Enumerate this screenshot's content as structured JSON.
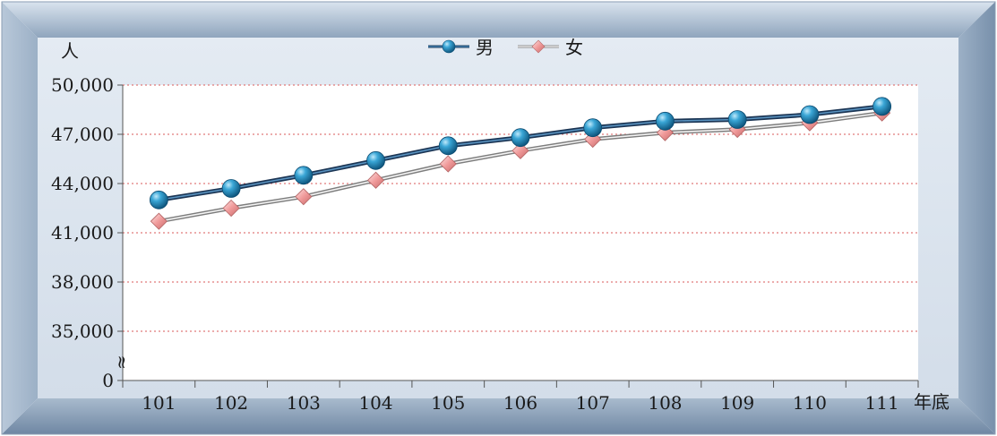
{
  "chart_data": {
    "type": "line",
    "y_unit_label": "人",
    "x_unit_label": "年底",
    "categories": [
      "101",
      "102",
      "103",
      "104",
      "105",
      "106",
      "107",
      "108",
      "109",
      "110",
      "111"
    ],
    "y_ticks": [
      "50,000",
      "47,000",
      "44,000",
      "41,000",
      "38,000",
      "35,000",
      "0"
    ],
    "y_tick_values": [
      50000,
      47000,
      44000,
      41000,
      38000,
      35000,
      0
    ],
    "axis_break": "≈",
    "ylim_visible": [
      32000,
      50000
    ],
    "grid": true,
    "legend_position": "top-center",
    "series": [
      {
        "name": "男",
        "color": "#1f6f9a",
        "marker": "circle",
        "values": [
          43000,
          43700,
          44500,
          45400,
          46300,
          46800,
          47400,
          47800,
          47900,
          48200,
          48700
        ]
      },
      {
        "name": "女",
        "color": "#e8a0a0",
        "marker": "diamond",
        "values": [
          41700,
          42500,
          43200,
          44200,
          45200,
          46000,
          46700,
          47100,
          47300,
          47700,
          48300
        ]
      }
    ]
  }
}
